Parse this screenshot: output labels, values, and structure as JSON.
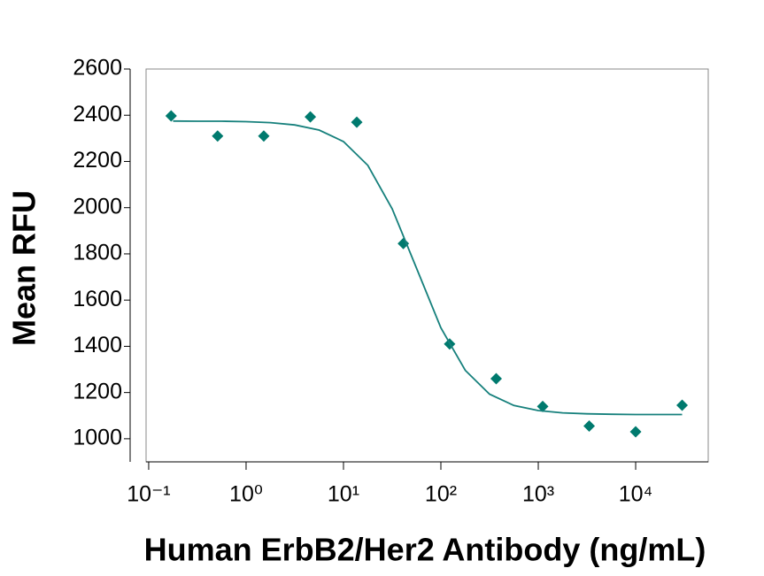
{
  "chart_data": {
    "type": "scatter",
    "x_label": "Human ErbB2/Her2 Antibody (ng/mL)",
    "y_label": "Mean RFU",
    "xscale": "log",
    "xlim": [
      0.094,
      55600
    ],
    "ylim": [
      900,
      2600
    ],
    "xticks": [
      {
        "value": 0.1,
        "label": "10⁻¹"
      },
      {
        "value": 1,
        "label": "10⁰"
      },
      {
        "value": 10,
        "label": "10¹"
      },
      {
        "value": 100,
        "label": "10²"
      },
      {
        "value": 1000,
        "label": "10³"
      },
      {
        "value": 10000,
        "label": "10⁴"
      }
    ],
    "yticks": [
      1000,
      1200,
      1400,
      1600,
      1800,
      2000,
      2200,
      2400,
      2600
    ],
    "grid": false,
    "series": [
      {
        "kind": "points",
        "color": "#007a6e",
        "x": [
          0.17,
          0.51,
          1.52,
          4.57,
          13.7,
          41.2,
          123,
          370,
          1111,
          3333,
          10000,
          30000
        ],
        "values": [
          2397,
          2310,
          2310,
          2393,
          2370,
          1845,
          1410,
          1260,
          1140,
          1055,
          1030,
          1145
        ]
      },
      {
        "kind": "curve",
        "color": "#16807c",
        "x": [
          0.178,
          0.316,
          0.562,
          1,
          1.78,
          3.16,
          5.62,
          10,
          17.8,
          31.6,
          56.2,
          100,
          178,
          316,
          562,
          1000,
          1778,
          3162,
          5623,
          10000,
          17783,
          30000
        ],
        "values": [
          2375,
          2374,
          2374,
          2372,
          2368,
          2358,
          2336,
          2286,
          2183,
          1995,
          1738,
          1480,
          1296,
          1193,
          1144,
          1122,
          1112,
          1108,
          1106,
          1105,
          1105,
          1105
        ]
      }
    ]
  }
}
